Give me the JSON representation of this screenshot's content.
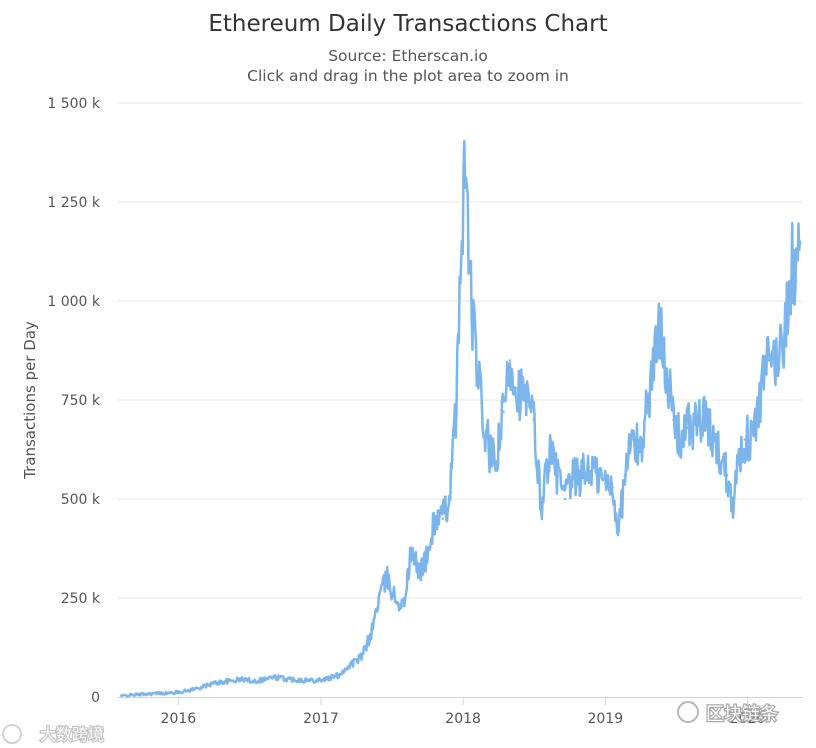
{
  "chart_data": {
    "type": "line",
    "title": "Ethereum Daily Transactions Chart",
    "subtitle": "Source: Etherscan.io",
    "subtitle2": "Click and drag in the plot area to zoom in",
    "ylabel": "Transactions per Day",
    "xlabel": "",
    "ylim": [
      0,
      1500000
    ],
    "xlim": [
      "2015-07-30",
      "2020-05-20"
    ],
    "yticks": [
      0,
      250000,
      500000,
      750000,
      1000000,
      1250000,
      1500000
    ],
    "ytick_labels": [
      "0",
      "250 k",
      "500 k",
      "750 k",
      "1 000 k",
      "1 250 k",
      "1 500 k"
    ],
    "xticks": [
      "2016-01-01",
      "2017-01-01",
      "2018-01-01",
      "2019-01-01",
      "2020-01-01"
    ],
    "xtick_labels": [
      "2016",
      "2017",
      "2018",
      "2019",
      "2020"
    ],
    "grid": true,
    "legend": "none",
    "series_color": "#7cb5ec",
    "series": [
      {
        "points": [
          [
            "2015-08-07",
            3000
          ],
          [
            "2015-09-15",
            6000
          ],
          [
            "2015-11-01",
            9000
          ],
          [
            "2015-12-15",
            10000
          ],
          [
            "2016-01-20",
            15000
          ],
          [
            "2016-03-01",
            25000
          ],
          [
            "2016-04-01",
            35000
          ],
          [
            "2016-05-10",
            40000
          ],
          [
            "2016-06-15",
            45000
          ],
          [
            "2016-07-15",
            40000
          ],
          [
            "2016-09-01",
            50000
          ],
          [
            "2016-10-15",
            45000
          ],
          [
            "2016-12-01",
            42000
          ],
          [
            "2017-01-15",
            45000
          ],
          [
            "2017-02-15",
            55000
          ],
          [
            "2017-03-15",
            80000
          ],
          [
            "2017-04-15",
            100000
          ],
          [
            "2017-05-10",
            160000
          ],
          [
            "2017-06-01",
            260000
          ],
          [
            "2017-06-20",
            300000
          ],
          [
            "2017-07-10",
            250000
          ],
          [
            "2017-08-01",
            230000
          ],
          [
            "2017-08-20",
            360000
          ],
          [
            "2017-09-10",
            320000
          ],
          [
            "2017-10-01",
            350000
          ],
          [
            "2017-10-20",
            450000
          ],
          [
            "2017-11-10",
            450000
          ],
          [
            "2017-11-25",
            500000
          ],
          [
            "2017-12-05",
            600000
          ],
          [
            "2017-12-15",
            750000
          ],
          [
            "2017-12-25",
            1050000
          ],
          [
            "2018-01-04",
            1350000
          ],
          [
            "2018-01-15",
            1150000
          ],
          [
            "2018-01-25",
            950000
          ],
          [
            "2018-02-05",
            850000
          ],
          [
            "2018-02-20",
            700000
          ],
          [
            "2018-03-10",
            620000
          ],
          [
            "2018-03-25",
            580000
          ],
          [
            "2018-04-15",
            720000
          ],
          [
            "2018-05-01",
            850000
          ],
          [
            "2018-05-20",
            780000
          ],
          [
            "2018-06-10",
            750000
          ],
          [
            "2018-07-01",
            700000
          ],
          [
            "2018-07-20",
            480000
          ],
          [
            "2018-08-10",
            620000
          ],
          [
            "2018-09-01",
            560000
          ],
          [
            "2018-09-20",
            500000
          ],
          [
            "2018-10-10",
            550000
          ],
          [
            "2018-11-01",
            560000
          ],
          [
            "2018-11-20",
            580000
          ],
          [
            "2018-12-10",
            560000
          ],
          [
            "2019-01-01",
            540000
          ],
          [
            "2019-01-20",
            530000
          ],
          [
            "2019-02-05",
            420000
          ],
          [
            "2019-02-20",
            560000
          ],
          [
            "2019-03-10",
            650000
          ],
          [
            "2019-04-01",
            620000
          ],
          [
            "2019-04-20",
            750000
          ],
          [
            "2019-05-10",
            870000
          ],
          [
            "2019-05-25",
            950000
          ],
          [
            "2019-06-10",
            800000
          ],
          [
            "2019-06-25",
            700000
          ],
          [
            "2019-07-10",
            650000
          ],
          [
            "2019-08-01",
            680000
          ],
          [
            "2019-08-20",
            690000
          ],
          [
            "2019-09-10",
            700000
          ],
          [
            "2019-10-01",
            660000
          ],
          [
            "2019-10-20",
            620000
          ],
          [
            "2019-11-10",
            560000
          ],
          [
            "2019-11-25",
            500000
          ],
          [
            "2019-12-10",
            600000
          ],
          [
            "2019-12-25",
            650000
          ],
          [
            "2020-01-10",
            650000
          ],
          [
            "2020-01-25",
            700000
          ],
          [
            "2020-02-10",
            800000
          ],
          [
            "2020-02-25",
            850000
          ],
          [
            "2020-03-15",
            850000
          ],
          [
            "2020-04-01",
            900000
          ],
          [
            "2020-04-15",
            1000000
          ],
          [
            "2020-04-25",
            1100000
          ],
          [
            "2020-05-05",
            1050000
          ],
          [
            "2020-05-15",
            1150000
          ]
        ]
      }
    ]
  },
  "watermarks": {
    "left": "大数跨境",
    "right": "区块链条"
  }
}
